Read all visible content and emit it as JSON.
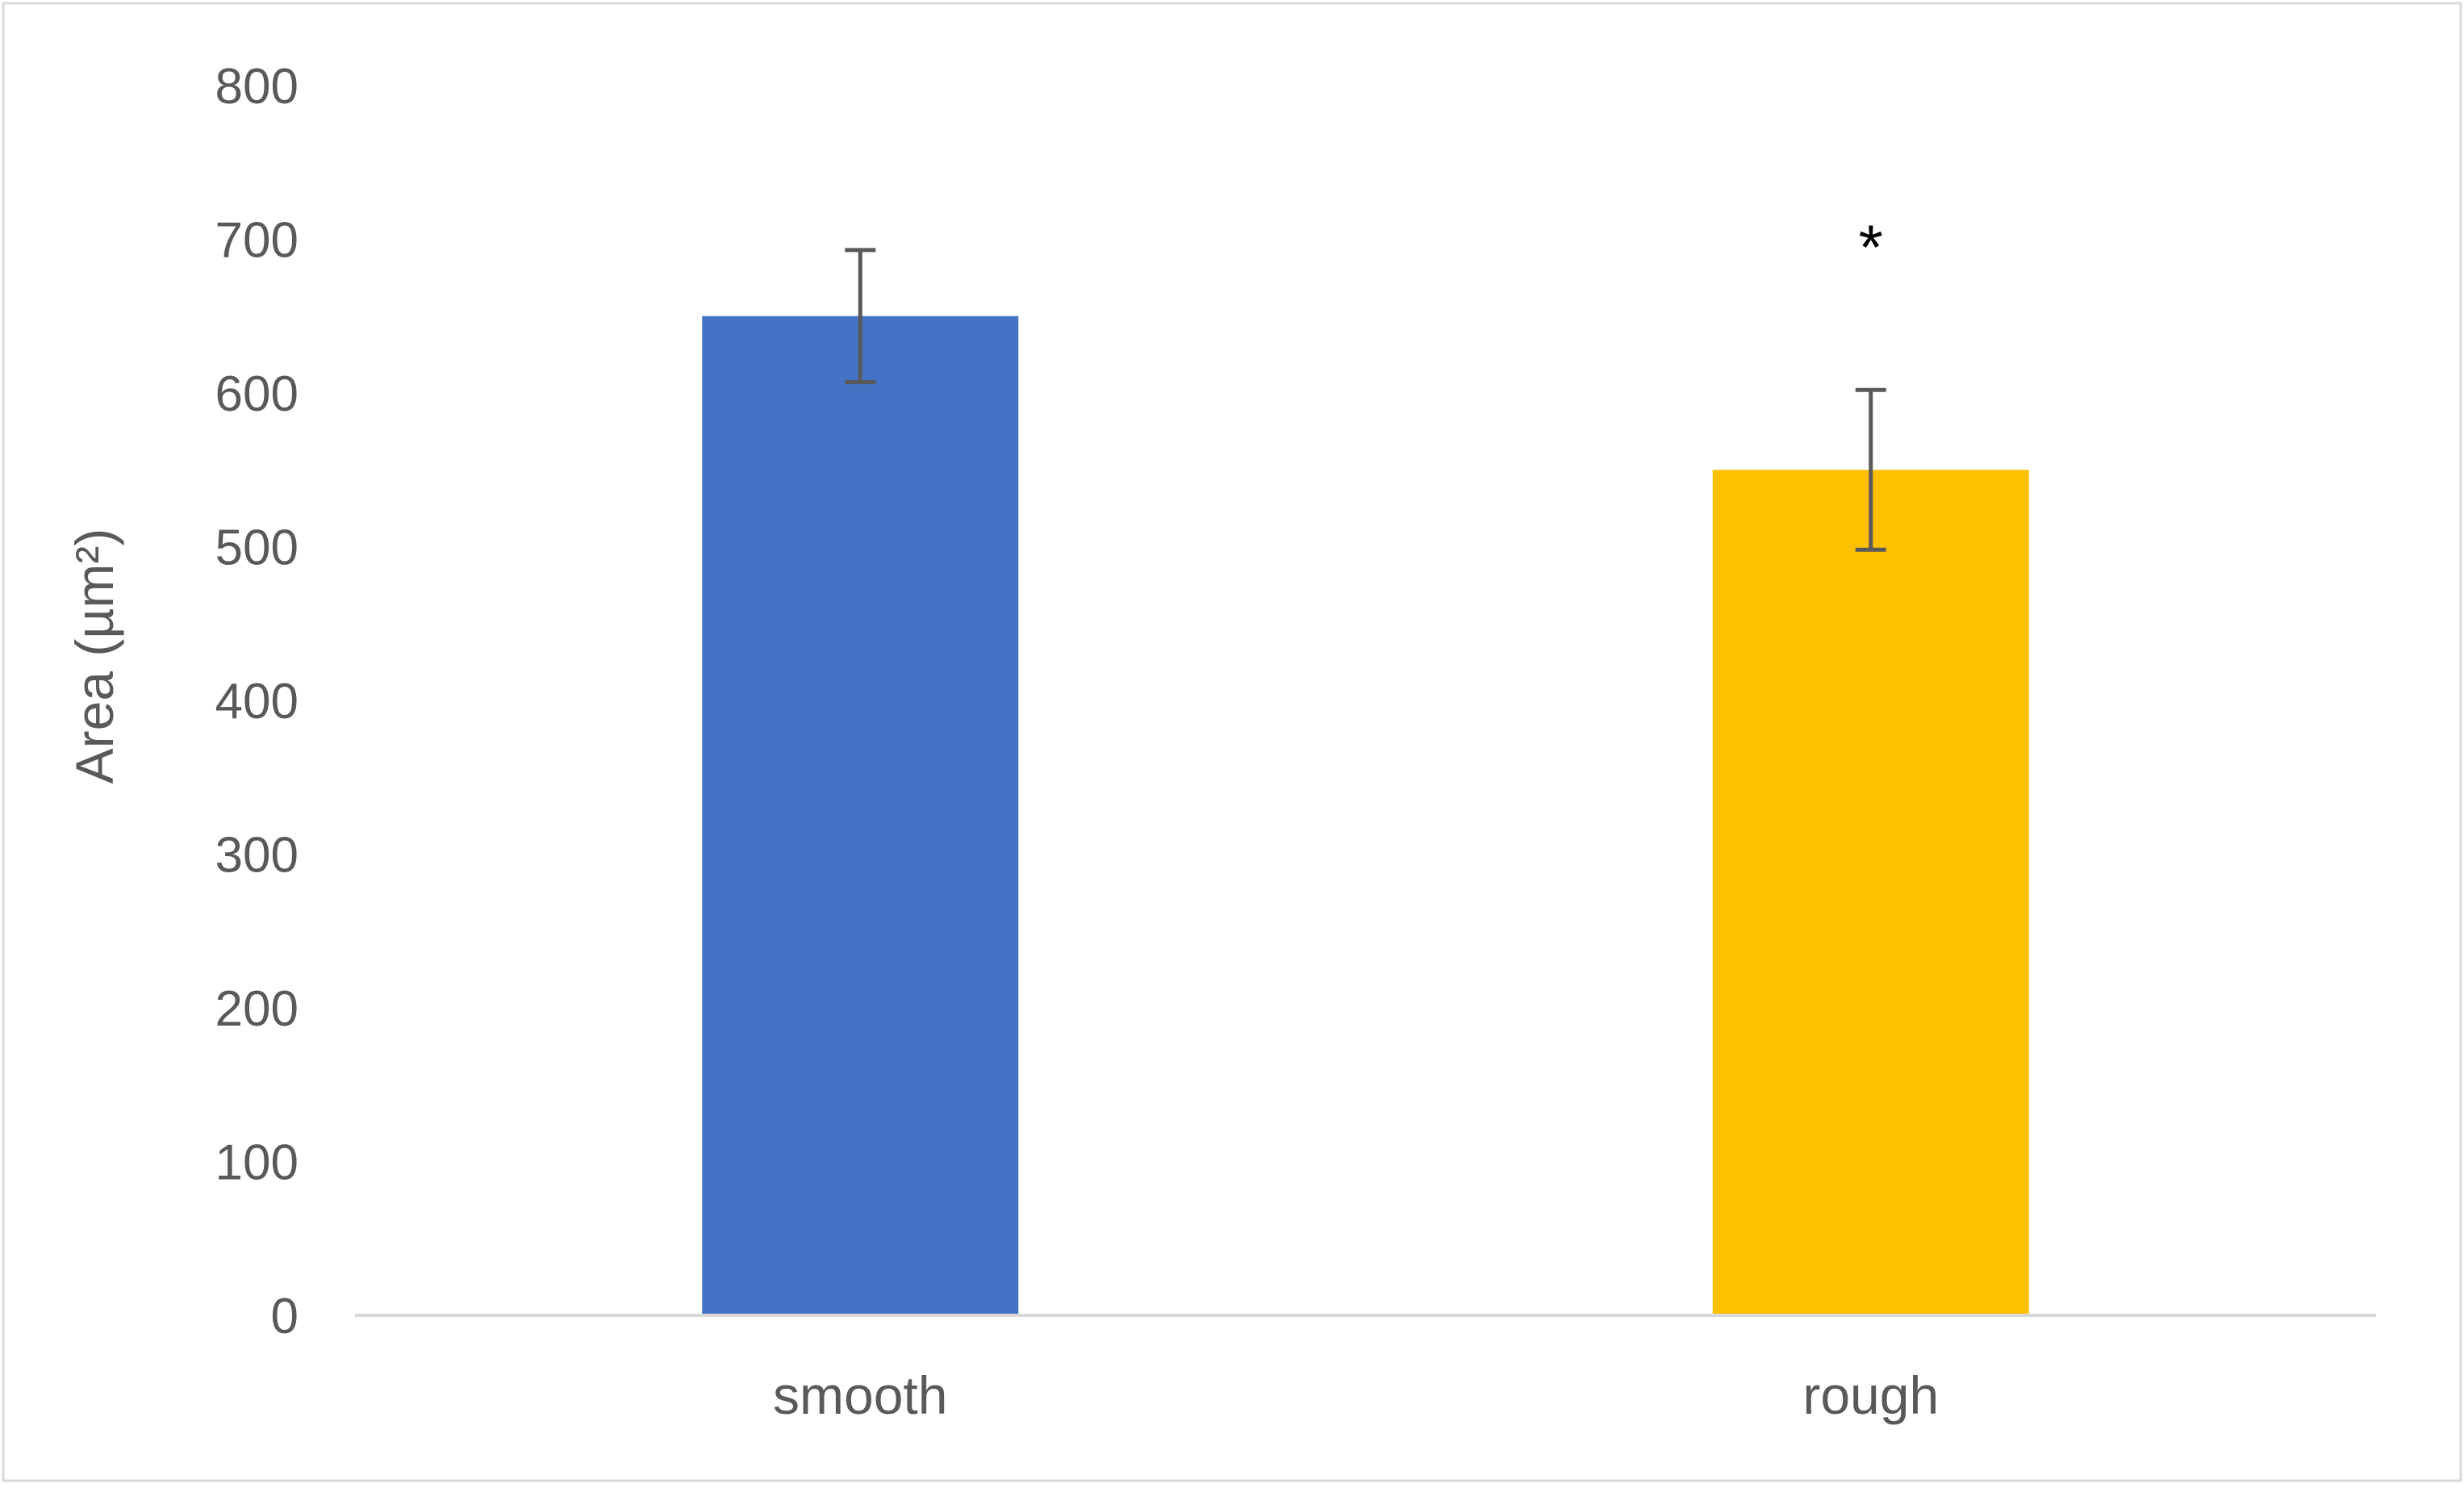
{
  "chart_data": {
    "type": "bar",
    "categories": [
      "smooth",
      "rough"
    ],
    "values": [
      650,
      550
    ],
    "error_bars": [
      {
        "low": 607,
        "high": 693
      },
      {
        "low": 498,
        "high": 602
      }
    ],
    "bar_colors": [
      "#4472C4",
      "#FFC000"
    ],
    "title": "",
    "xlabel": "",
    "ylabel": "Area (µm²)",
    "ylim": [
      0,
      800
    ],
    "yticks": [
      "0",
      "100",
      "200",
      "300",
      "400",
      "500",
      "600",
      "700",
      "800"
    ],
    "grid": false,
    "annotations": [
      {
        "category": "rough",
        "text": "*"
      }
    ]
  }
}
